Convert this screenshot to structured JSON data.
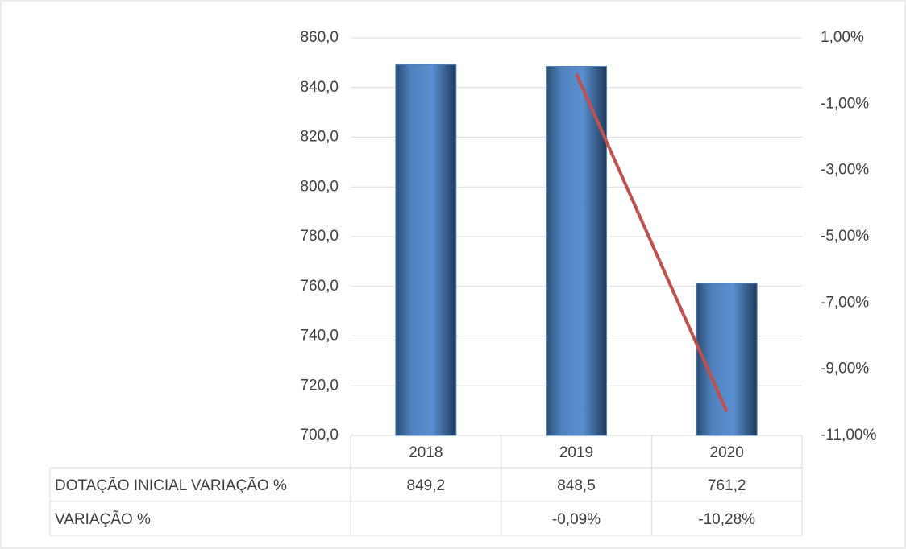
{
  "chart_data": {
    "type": "bar",
    "categories": [
      "2018",
      "2019",
      "2020"
    ],
    "series": [
      {
        "name": "DOTAÇÃO INICIAL VARIAÇÃO %",
        "type": "bar",
        "color": "#4f81bd",
        "values": [
          849.2,
          848.5,
          761.2
        ],
        "value_labels": [
          "849,2",
          "848,5",
          "761,2"
        ]
      },
      {
        "name": "VARIAÇÃO %",
        "type": "line",
        "axis": "y2",
        "color": "#c0504d",
        "values": [
          null,
          -0.09,
          -10.28
        ],
        "value_labels": [
          null,
          "-0,09%",
          "-10,28%"
        ]
      }
    ],
    "ylim": [
      700,
      860
    ],
    "yticks": [
      {
        "value": 700,
        "label": "700,0"
      },
      {
        "value": 720,
        "label": "720,0"
      },
      {
        "value": 740,
        "label": "740,0"
      },
      {
        "value": 760,
        "label": "760,0"
      },
      {
        "value": 780,
        "label": "780,0"
      },
      {
        "value": 800,
        "label": "800,0"
      },
      {
        "value": 820,
        "label": "820,0"
      },
      {
        "value": 840,
        "label": "840,0"
      },
      {
        "value": 860,
        "label": "860,0"
      }
    ],
    "y2lim": [
      -11,
      1
    ],
    "y2ticks": [
      {
        "value": -11,
        "label": "-11,00%"
      },
      {
        "value": -9,
        "label": "-9,00%"
      },
      {
        "value": -7,
        "label": "-7,00%"
      },
      {
        "value": -5,
        "label": "-5,00%"
      },
      {
        "value": -3,
        "label": "-3,00%"
      },
      {
        "value": -1,
        "label": "-1,00%"
      },
      {
        "value": 1,
        "label": "1,00%"
      }
    ],
    "grid": true
  }
}
